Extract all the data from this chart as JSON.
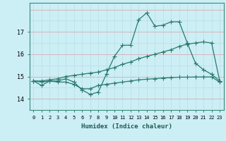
{
  "xlabel": "Humidex (Indice chaleur)",
  "x_ticks": [
    0,
    1,
    2,
    3,
    4,
    5,
    6,
    7,
    8,
    9,
    10,
    11,
    12,
    13,
    14,
    15,
    16,
    17,
    18,
    19,
    20,
    21,
    22,
    23
  ],
  "ylim": [
    13.5,
    18.3
  ],
  "y_ticks": [
    14,
    15,
    16,
    17
  ],
  "background_color": "#cceef5",
  "grid_color_major": "#d9a0a0",
  "grid_color_minor": "#b8dde8",
  "line_color": "#2a7a6e",
  "series1": [
    14.8,
    14.6,
    14.8,
    14.8,
    14.9,
    14.75,
    14.4,
    14.2,
    14.3,
    15.1,
    15.9,
    16.4,
    16.4,
    17.55,
    17.85,
    17.25,
    17.3,
    17.45,
    17.45,
    16.5,
    15.6,
    15.3,
    15.1,
    14.8
  ],
  "series2": [
    14.8,
    14.75,
    14.8,
    14.75,
    14.75,
    14.65,
    14.45,
    14.45,
    14.6,
    14.65,
    14.7,
    14.75,
    14.8,
    14.85,
    14.88,
    14.9,
    14.93,
    14.95,
    14.97,
    14.97,
    14.98,
    14.98,
    14.98,
    14.75
  ],
  "series3": [
    14.8,
    14.8,
    14.85,
    14.9,
    15.0,
    15.05,
    15.1,
    15.15,
    15.2,
    15.3,
    15.4,
    15.55,
    15.65,
    15.8,
    15.9,
    16.0,
    16.1,
    16.2,
    16.35,
    16.45,
    16.5,
    16.55,
    16.5,
    14.8
  ]
}
